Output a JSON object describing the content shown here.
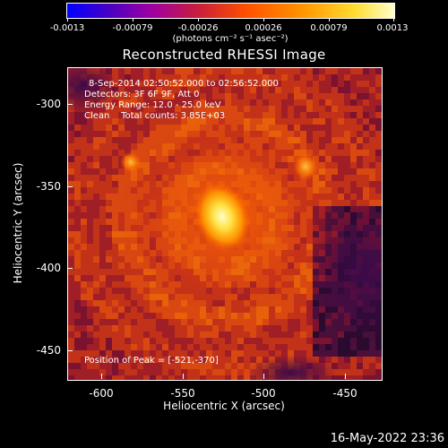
{
  "colorbar": {
    "tick_labels": [
      "-0.0013",
      "-0.00079",
      "-0.00026",
      "0.00026",
      "0.00079",
      "0.0013"
    ],
    "units": "(photons cm⁻² s⁻¹ asec⁻²)",
    "colors": [
      "#0000ff",
      "#a000a0",
      "#c81e3c",
      "#ff5000",
      "#ff9600",
      "#ffdc32",
      "#ffffcc"
    ]
  },
  "plot": {
    "title": "Reconstructed RHESSI Image",
    "info_lines": [
      "8-Sep-2014 02:50:52.000 to 02:56:52.000",
      "Detectors: 3F 6F 9F, Att 0",
      "Energy Range: 12.0 - 25.0 keV",
      "Clean    Total counts: 3.85E+03"
    ],
    "peak_label": "Position of Peak = [-521,-370]",
    "x_axis_title": "Heliocentric X (arcsec)",
    "y_axis_title": "Heliocentric Y (arcsec)",
    "x_tick_labels": [
      "-600",
      "-550",
      "-500",
      "-450"
    ],
    "y_tick_labels": [
      "-300",
      "-350",
      "-400",
      "-450"
    ],
    "x_range": [
      -617,
      -427
    ],
    "y_range": [
      -473,
      -285
    ],
    "peak_position": [
      -521,
      -370
    ]
  },
  "timestamp": "16-May-2022 23:36"
}
